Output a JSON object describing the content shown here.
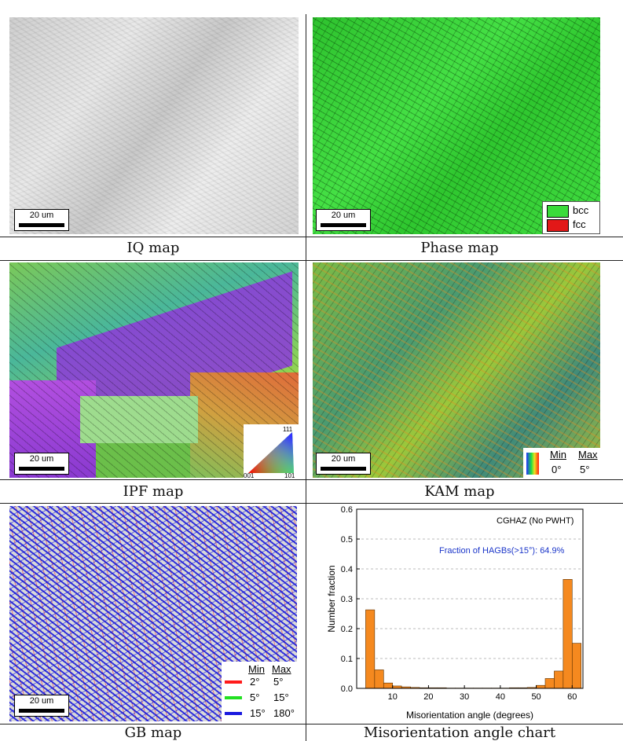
{
  "panels": {
    "iq": {
      "caption": "IQ map",
      "scale": "20 um"
    },
    "phase": {
      "caption": "Phase map",
      "scale": "20 um",
      "legend": [
        {
          "label": "bcc",
          "color": "#3adb3a"
        },
        {
          "label": "fcc",
          "color": "#e21818"
        }
      ]
    },
    "ipf": {
      "caption": "IPF map",
      "scale": "20 um",
      "tri_labels": {
        "top": "111",
        "left": "001",
        "right": "101"
      }
    },
    "kam": {
      "caption": "KAM map",
      "scale": "20 um",
      "legend": {
        "min_label": "Min",
        "max_label": "Max",
        "min_value": "0°",
        "max_value": "5°"
      }
    },
    "gb": {
      "caption": "GB map",
      "scale": "20 um",
      "legend": {
        "min_label": "Min",
        "max_label": "Max",
        "rows": [
          {
            "color": "#ff1a1a",
            "min": "2°",
            "max": "5°"
          },
          {
            "color": "#22e022",
            "min": "5°",
            "max": "15°"
          },
          {
            "color": "#1a1adf",
            "min": "15°",
            "max": "180°"
          }
        ]
      }
    },
    "chart": {
      "caption": "Misorientation angle chart"
    }
  },
  "chart_data": {
    "type": "bar",
    "annotation_1": "CGHAZ (No PWHT)",
    "annotation_2": "Fraction of HAGBs(>15°): 64.9%",
    "xlabel": "Misorientation angle (degrees)",
    "ylabel": "Number fraction",
    "xlim": [
      0,
      63
    ],
    "ylim": [
      0,
      0.6
    ],
    "xticks": [
      10,
      20,
      30,
      40,
      50,
      60
    ],
    "yticks": [
      0.0,
      0.1,
      0.2,
      0.3,
      0.4,
      0.5,
      0.6
    ],
    "ytick_labels": [
      "0.0",
      "0.1",
      "0.2",
      "0.3",
      "0.4",
      "0.5",
      "0.6"
    ],
    "bin_width": 2.5,
    "bin_centers": [
      3.75,
      6.25,
      8.75,
      11.25,
      13.75,
      16.25,
      18.75,
      21.25,
      23.75,
      26.25,
      28.75,
      31.25,
      33.75,
      36.25,
      38.75,
      41.25,
      43.75,
      46.25,
      48.75,
      51.25,
      53.75,
      56.25,
      58.75,
      61.25
    ],
    "values": [
      0.263,
      0.062,
      0.018,
      0.008,
      0.005,
      0.003,
      0.002,
      0.002,
      0.002,
      0.001,
      0.001,
      0.001,
      0.001,
      0.001,
      0.001,
      0.001,
      0.002,
      0.002,
      0.003,
      0.01,
      0.033,
      0.058,
      0.365,
      0.151
    ],
    "bar_color": "#f5891f",
    "grid": true
  }
}
